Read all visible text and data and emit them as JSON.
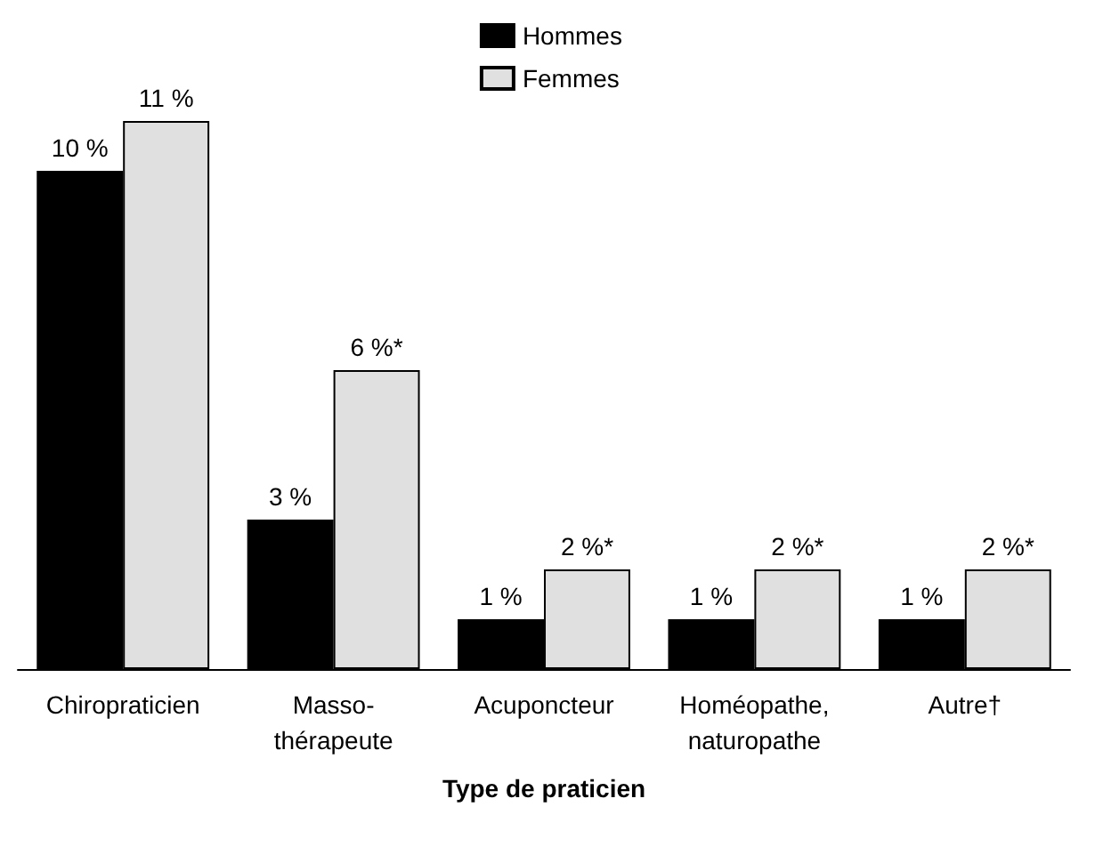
{
  "chart_data": {
    "type": "bar",
    "xlabel": "Type de praticien",
    "categories": [
      "Chiropraticien",
      "Masso-\nthérapeute",
      "Acuponcteur",
      "Homéopathe,\nnaturopathe",
      "Autre†"
    ],
    "series": [
      {
        "name": "Hommes",
        "color": "#000000",
        "values": [
          10,
          3,
          1,
          1,
          1
        ],
        "value_labels": [
          "10 %",
          "3 %",
          "1 %",
          "1 %",
          "1 %"
        ]
      },
      {
        "name": "Femmes",
        "color": "#e0e0e0",
        "values": [
          11,
          6,
          2,
          2,
          2
        ],
        "value_labels": [
          "11 %",
          "6 %*",
          "2 %*",
          "2 %*",
          "2 %*"
        ]
      }
    ],
    "legend": "top"
  }
}
